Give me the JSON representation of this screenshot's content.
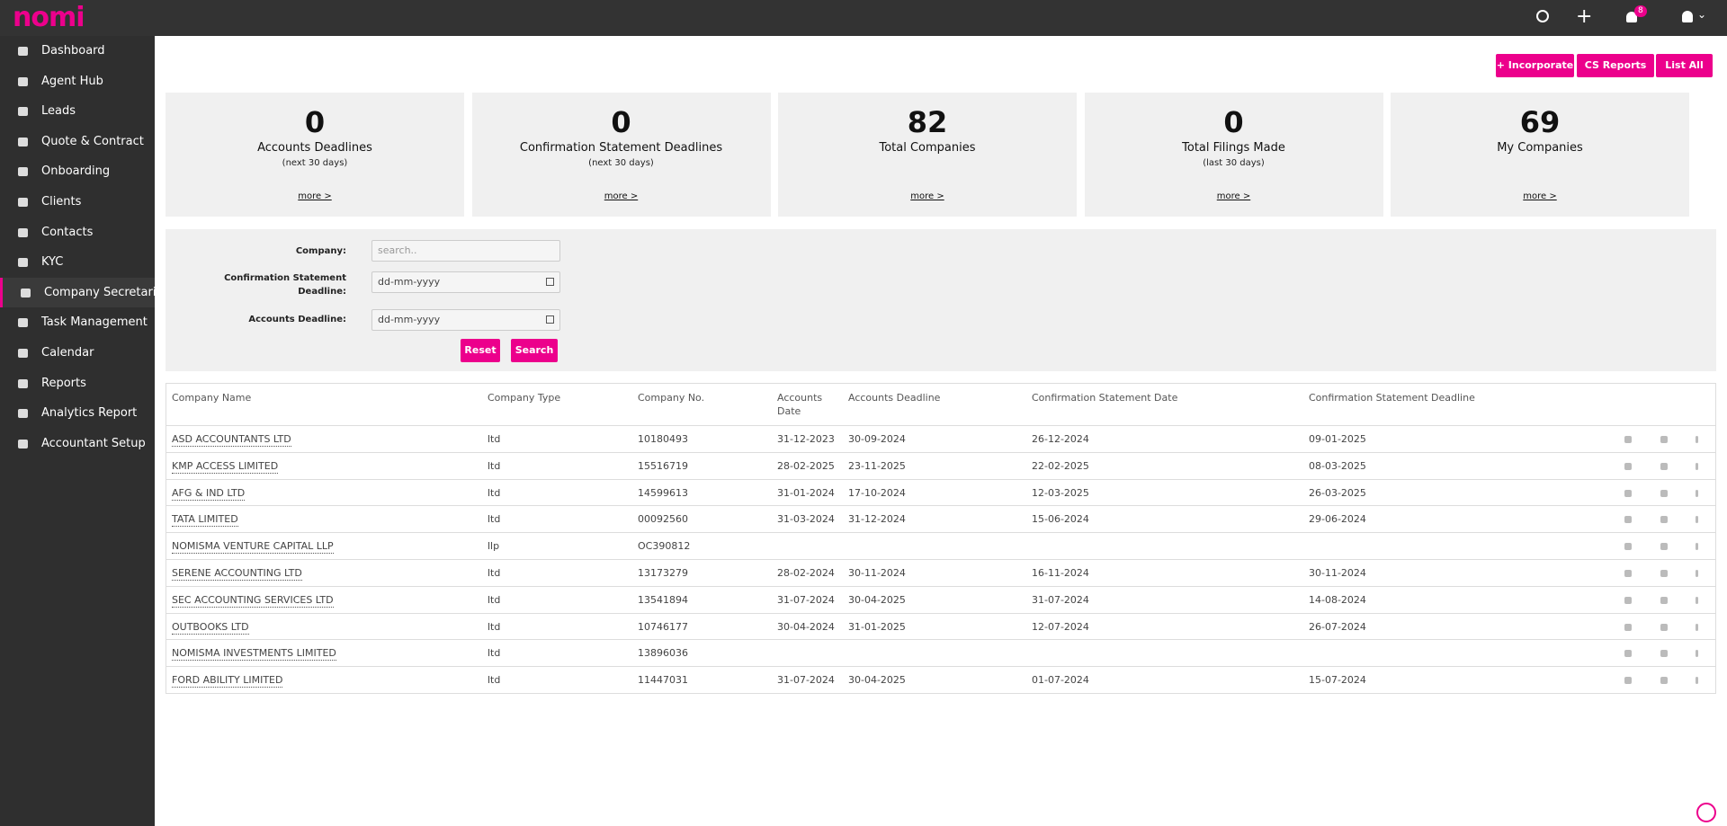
{
  "topbar": {
    "logo": "nomi",
    "badge": "8"
  },
  "nav": [
    "Dashboard",
    "Agent Hub",
    "Leads",
    "Quote & Contract",
    "Onboarding",
    "Clients",
    "Contacts",
    "KYC",
    "Company Secretarial",
    "Task Management",
    "Calendar",
    "Reports",
    "Analytics Report",
    "Accountant Setup"
  ],
  "actions": [
    "+ Incorporate",
    "CS Reports",
    "List All"
  ],
  "stats": [
    {
      "value": 0,
      "label": "Accounts Deadlines",
      "sub": "(next 30 days)",
      "more": "more >"
    },
    {
      "value": 0,
      "label": "Confirmation Statement Deadlines",
      "sub": "(next 30 days)",
      "more": "more >"
    },
    {
      "value": 82,
      "label": "Total Companies",
      "more": "more >"
    },
    {
      "value": 0,
      "label": "Total Filings Made",
      "sub": "(last 30 days)",
      "more": "more >"
    },
    {
      "value": 69,
      "label": "My Companies",
      "more": "more >"
    }
  ],
  "filters": {
    "fields": [
      {
        "label": "Company:",
        "placeholder": "search.."
      },
      {
        "label": "Confirmation Statement Deadline:",
        "placeholder": "dd-mm-yyyy"
      },
      {
        "label": "Accounts Deadline:",
        "placeholder": "dd-mm-yyyy"
      }
    ],
    "buttons": [
      "Reset",
      "Search"
    ]
  },
  "table": {
    "columns": [
      "Company Name",
      "Company Type",
      "Company No.",
      "Accounts Date",
      "Accounts Deadline",
      "Confirmation Statement Date",
      "Confirmation Statement Deadline"
    ],
    "rows": [
      [
        "ASD ACCOUNTANTS LTD",
        "ltd",
        "10180493",
        "31-12-2023",
        "30-09-2024",
        "26-12-2024",
        "09-01-2025"
      ],
      [
        "KMP ACCESS LIMITED",
        "ltd",
        "15516719",
        "28-02-2025",
        "23-11-2025",
        "22-02-2025",
        "08-03-2025"
      ],
      [
        "AFG & IND LTD",
        "ltd",
        "14599613",
        "31-01-2024",
        "17-10-2024",
        "12-03-2025",
        "26-03-2025"
      ],
      [
        "TATA LIMITED",
        "ltd",
        "00092560",
        "31-03-2024",
        "31-12-2024",
        "15-06-2024",
        "29-06-2024"
      ],
      [
        "NOMISMA VENTURE CAPITAL LLP",
        "llp",
        "OC390812",
        null,
        null,
        null,
        null
      ],
      [
        "SERENE ACCOUNTING LTD",
        "ltd",
        "13173279",
        "28-02-2024",
        "30-11-2024",
        "16-11-2024",
        "30-11-2024"
      ],
      [
        "SEC ACCOUNTING SERVICES LTD",
        "ltd",
        "13541894",
        "31-07-2024",
        "30-04-2025",
        "31-07-2024",
        "14-08-2024"
      ],
      [
        "OUTBOOKS LTD",
        "ltd",
        "10746177",
        "30-04-2024",
        "31-01-2025",
        "12-07-2024",
        "26-07-2024"
      ],
      [
        "NOMISMA INVESTMENTS LIMITED",
        "ltd",
        "13896036",
        null,
        null,
        null,
        null
      ],
      [
        "FORD ABILITY LIMITED",
        "ltd",
        "11447031",
        "31-07-2024",
        "30-04-2025",
        "01-07-2024",
        "15-07-2024"
      ]
    ]
  }
}
